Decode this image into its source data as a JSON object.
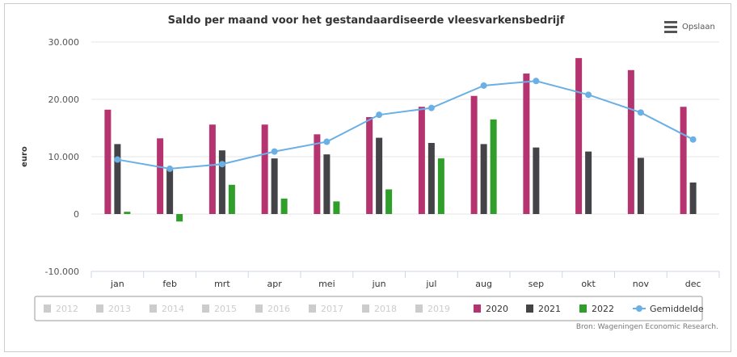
{
  "export_button": {
    "label": "Opslaan",
    "icon": "menu-icon"
  },
  "source": "Bron: Wageningen Economic Research.",
  "chart_data": {
    "type": "bar",
    "title": "Saldo per maand voor het gestandaardiseerde vleesvarkensbedrijf",
    "xlabel": "",
    "ylabel": "euro",
    "ylim": [
      -10000,
      30000
    ],
    "yticks": [
      -10000,
      0,
      10000,
      20000,
      30000
    ],
    "ytick_labels": [
      "-10.000",
      "0",
      "10.000",
      "20.000",
      "30.000"
    ],
    "grid": true,
    "categories": [
      "jan",
      "feb",
      "mrt",
      "apr",
      "mei",
      "jun",
      "jul",
      "aug",
      "sep",
      "okt",
      "nov",
      "dec"
    ],
    "series": [
      {
        "name": "2020",
        "type": "bar",
        "color": "#b5336f",
        "values": [
          18200,
          13200,
          15600,
          15600,
          13900,
          16900,
          18700,
          20600,
          24500,
          27200,
          25100,
          18700
        ]
      },
      {
        "name": "2021",
        "type": "bar",
        "color": "#434348",
        "values": [
          12200,
          7900,
          11100,
          9700,
          10400,
          13300,
          12400,
          12200,
          11600,
          10900,
          9800,
          5500
        ]
      },
      {
        "name": "2022",
        "type": "bar",
        "color": "#2f9e2a",
        "values": [
          400,
          -1300,
          5100,
          2700,
          2200,
          4300,
          9700,
          16500,
          null,
          null,
          null,
          null
        ]
      },
      {
        "name": "Gemiddelde",
        "type": "line",
        "color": "#6ab0e4",
        "values": [
          9500,
          7900,
          8700,
          10900,
          12600,
          17300,
          18500,
          22400,
          23200,
          20800,
          17700,
          13000
        ]
      }
    ],
    "legend": {
      "placement": "bottom",
      "hidden_items": [
        "2012",
        "2013",
        "2014",
        "2015",
        "2016",
        "2017",
        "2018",
        "2019"
      ],
      "items": [
        "2012",
        "2013",
        "2014",
        "2015",
        "2016",
        "2017",
        "2018",
        "2019",
        "2020",
        "2021",
        "2022",
        "Gemiddelde"
      ]
    }
  }
}
